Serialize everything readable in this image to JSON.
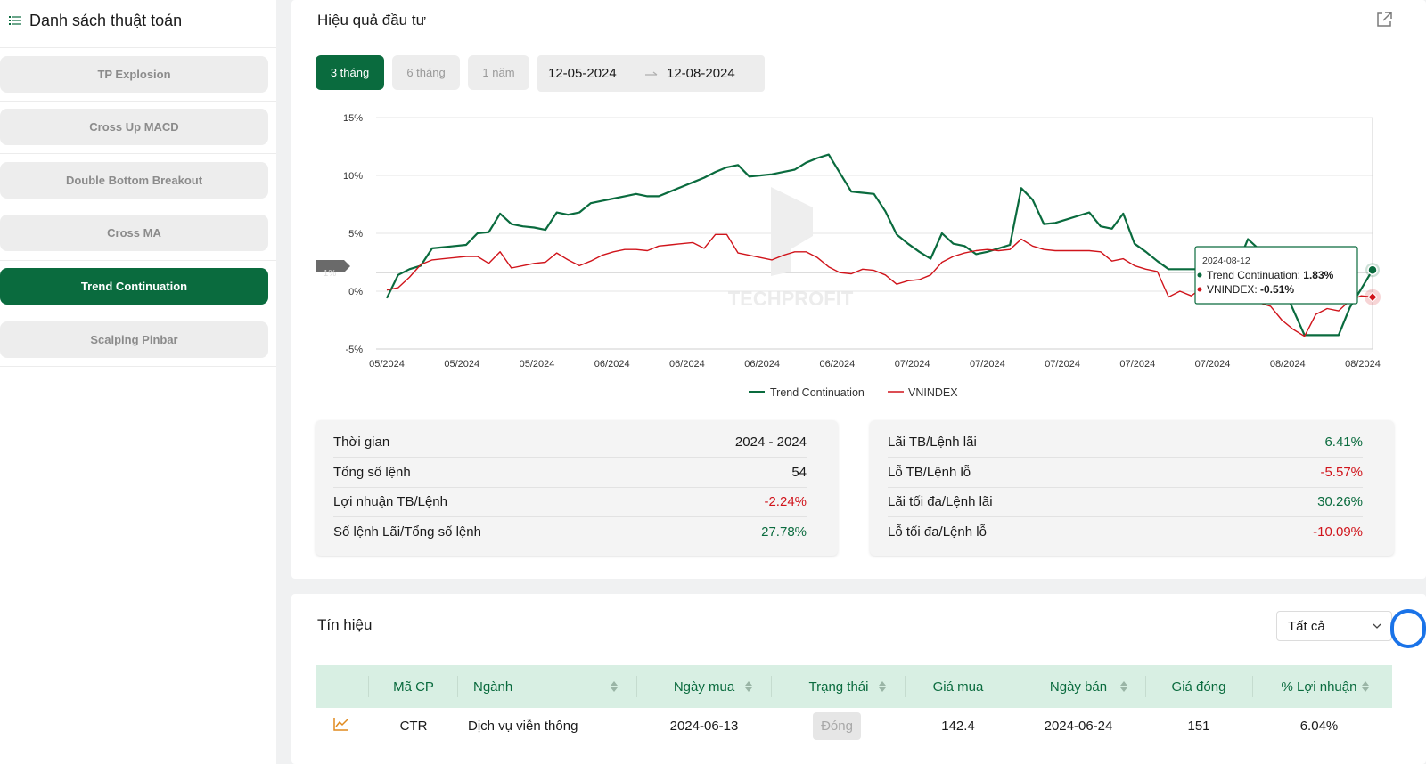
{
  "sidebar": {
    "title": "Danh sách thuật toán",
    "items": [
      {
        "label": "TP Explosion",
        "active": false
      },
      {
        "label": "Cross Up MACD",
        "active": false
      },
      {
        "label": "Double Bottom Breakout",
        "active": false
      },
      {
        "label": "Cross MA",
        "active": false
      },
      {
        "label": "Trend Continuation",
        "active": true
      },
      {
        "label": "Scalping Pinbar",
        "active": false
      }
    ]
  },
  "performance": {
    "title": "Hiệu quả đầu tư",
    "ranges": [
      "3 tháng",
      "6 tháng",
      "1 năm"
    ],
    "active_range": "3 tháng",
    "date_from": "12-05-2024",
    "date_to": "12-08-2024",
    "watermark": "TECHPROFIT",
    "current_marker": "1%",
    "tooltip": {
      "date": "2024-08-12",
      "series1_label": "Trend Continuation: ",
      "series1_value": "1.83%",
      "series2_label": "VNINDEX: ",
      "series2_value": "-0.51%"
    }
  },
  "chart_data": {
    "type": "line",
    "title": "",
    "xlabel": "",
    "ylabel": "",
    "ylim": [
      -5,
      15
    ],
    "yticks": [
      "15%",
      "10%",
      "5%",
      "0%",
      "-5%"
    ],
    "xticks": [
      "05/2024",
      "05/2024",
      "05/2024",
      "06/2024",
      "06/2024",
      "06/2024",
      "06/2024",
      "07/2024",
      "07/2024",
      "07/2024",
      "07/2024",
      "07/2024",
      "08/2024",
      "08/2024"
    ],
    "legend_position": "bottom",
    "grid": true,
    "colors": {
      "Trend Continuation": "#0a6b3e",
      "VNINDEX": "#d0141b"
    },
    "series": [
      {
        "name": "Trend Continuation",
        "values": [
          -0.6,
          1.4,
          1.9,
          2.2,
          3.7,
          3.8,
          3.9,
          4.0,
          5.0,
          5.1,
          6.7,
          5.8,
          5.6,
          5.5,
          5.3,
          6.8,
          6.6,
          6.8,
          7.6,
          7.8,
          8.0,
          8.2,
          8.4,
          8.2,
          8.2,
          8.6,
          9.0,
          9.4,
          9.8,
          10.3,
          10.7,
          10.9,
          9.9,
          10.0,
          10.1,
          10.3,
          10.5,
          11.1,
          11.5,
          11.8,
          10.2,
          8.6,
          8.5,
          8.4,
          6.9,
          4.9,
          4.1,
          3.4,
          2.8,
          5.0,
          4.1,
          3.9,
          3.2,
          3.4,
          3.7,
          4.0,
          8.9,
          7.9,
          5.8,
          5.9,
          6.2,
          6.5,
          6.8,
          5.6,
          5.4,
          6.7,
          4.1,
          3.4,
          2.6,
          1.9,
          1.9,
          1.9,
          1.9,
          2.6,
          1.9,
          2.1,
          4.5,
          3.6,
          2.8,
          0.6,
          -1.6,
          -3.8,
          -3.8,
          -3.8,
          -3.8,
          -1.4,
          0.2,
          1.83
        ]
      },
      {
        "name": "VNINDEX",
        "values": [
          0.1,
          0.3,
          1.2,
          2.3,
          2.7,
          2.8,
          2.9,
          3.0,
          3.0,
          2.4,
          3.4,
          2.0,
          2.2,
          2.4,
          2.5,
          3.3,
          2.7,
          2.2,
          2.6,
          3.1,
          3.4,
          3.6,
          3.6,
          3.5,
          3.9,
          4.0,
          4.1,
          4.2,
          3.7,
          4.9,
          4.9,
          3.3,
          3.1,
          2.9,
          2.7,
          3.1,
          3.4,
          3.4,
          2.9,
          2.1,
          1.6,
          1.5,
          1.9,
          1.8,
          1.4,
          0.6,
          0.9,
          1.0,
          1.4,
          2.5,
          3.0,
          3.3,
          3.5,
          3.6,
          3.5,
          3.6,
          4.5,
          3.9,
          3.6,
          3.5,
          3.5,
          3.5,
          3.5,
          3.4,
          2.6,
          2.8,
          2.2,
          1.9,
          1.7,
          -0.5,
          0.0,
          -0.4,
          0.3,
          0.4,
          0.6,
          0.3,
          -0.3,
          -1.0,
          -1.3,
          -2.5,
          -3.3,
          -3.9,
          -2.0,
          -1.5,
          -1.7,
          -0.8,
          -0.4,
          -0.51
        ]
      }
    ]
  },
  "stats_left": [
    {
      "label": "Thời gian",
      "value": "2024 - 2024",
      "tone": "dark"
    },
    {
      "label": "Tổng số lệnh",
      "value": "54",
      "tone": "dark"
    },
    {
      "label": "Lợi nhuận TB/Lệnh",
      "value": "-2.24%",
      "tone": "red"
    },
    {
      "label": "Số lệnh Lãi/Tổng số lệnh",
      "value": "27.78%",
      "tone": "green"
    }
  ],
  "stats_right": [
    {
      "label": "Lãi TB/Lệnh lãi",
      "value": "6.41%",
      "tone": "green"
    },
    {
      "label": "Lỗ TB/Lệnh lỗ",
      "value": "-5.57%",
      "tone": "red"
    },
    {
      "label": "Lãi tối đa/Lệnh lãi",
      "value": "30.26%",
      "tone": "green"
    },
    {
      "label": "Lỗ tối đa/Lệnh lỗ",
      "value": "-10.09%",
      "tone": "red"
    }
  ],
  "signals": {
    "title": "Tín hiệu",
    "filter_value": "Tất cả",
    "columns": [
      "Mã CP",
      "Ngành",
      "Ngày mua",
      "Trạng thái",
      "Giá mua",
      "Ngày bán",
      "Giá đóng",
      "% Lợi nhuận"
    ],
    "rows": [
      {
        "code": "CTR",
        "sector": "Dịch vụ viễn thông",
        "buy_date": "2024-06-13",
        "status": "Đóng",
        "buy_price": "142.4",
        "sell_date": "2024-06-24",
        "close_price": "151",
        "profit": "6.04%"
      }
    ]
  }
}
